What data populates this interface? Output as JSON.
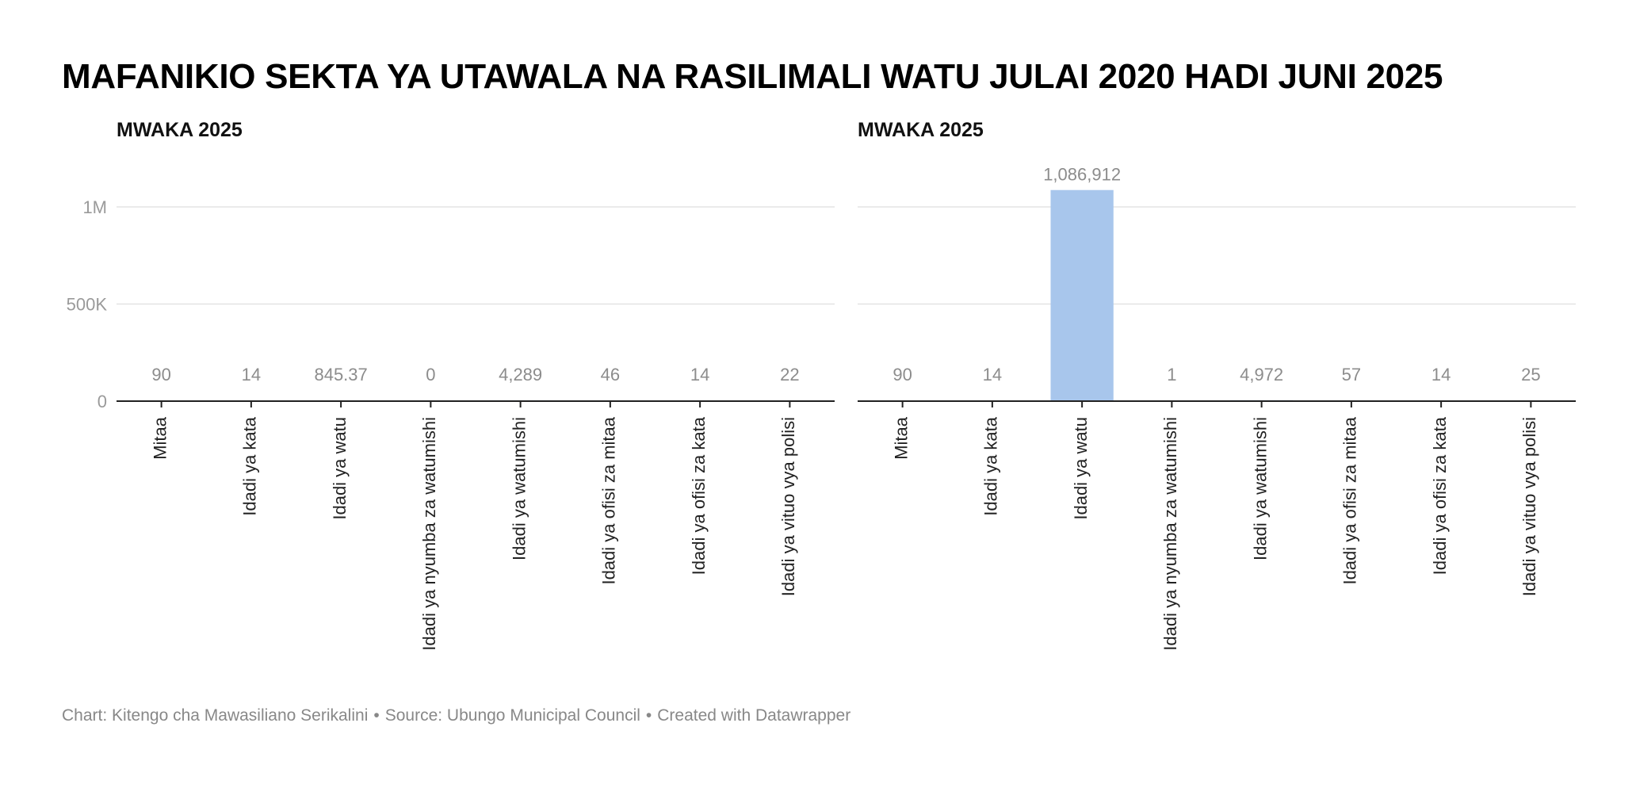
{
  "title": "MAFANIKIO SEKTA YA UTAWALA NA RASILIMALI WATU JULAI 2020 HADI JUNI 2025",
  "footer": {
    "chart_by": "Chart: Kitengo cha Mawasiliano Serikalini",
    "source": "Source: Ubungo Municipal Council",
    "created": "Created with Datawrapper",
    "separator": "•"
  },
  "colors": {
    "bar": "#a8c6ec"
  },
  "chart_data": [
    {
      "type": "bar",
      "title": "MWAKA 2025",
      "categories": [
        "Mitaa",
        "Idadi ya kata",
        "Idadi ya watu",
        "Idadi ya nyumba za watumishi",
        "Idadi ya watumishi",
        "Idadi ya ofisi za mitaa",
        "Idadi ya ofisi za kata",
        "Idadi ya vituo vya polisi"
      ],
      "values": [
        90,
        14,
        845.37,
        0,
        4289,
        46,
        14,
        22
      ],
      "value_labels": [
        "90",
        "14",
        "845.37",
        "0",
        "4,289",
        "46",
        "14",
        "22"
      ],
      "ylim": [
        0,
        1200000
      ],
      "yticks": [
        0,
        500000,
        1000000
      ],
      "ytick_labels": [
        "0",
        "500K",
        "1M"
      ],
      "grid": true
    },
    {
      "type": "bar",
      "title": "MWAKA 2025",
      "categories": [
        "Mitaa",
        "Idadi ya kata",
        "Idadi ya watu",
        "Idadi ya nyumba za watumishi",
        "Idadi ya watumishi",
        "Idadi ya ofisi za mitaa",
        "Idadi ya ofisi za kata",
        "Idadi ya vituo vya polisi"
      ],
      "values": [
        90,
        14,
        1086912,
        1,
        4972,
        57,
        14,
        25
      ],
      "value_labels": [
        "90",
        "14",
        "1,086,912",
        "1",
        "4,972",
        "57",
        "14",
        "25"
      ],
      "ylim": [
        0,
        1200000
      ],
      "yticks": [
        0,
        500000,
        1000000
      ],
      "ytick_labels": [
        "0",
        "500K",
        "1M"
      ],
      "grid": true
    }
  ]
}
